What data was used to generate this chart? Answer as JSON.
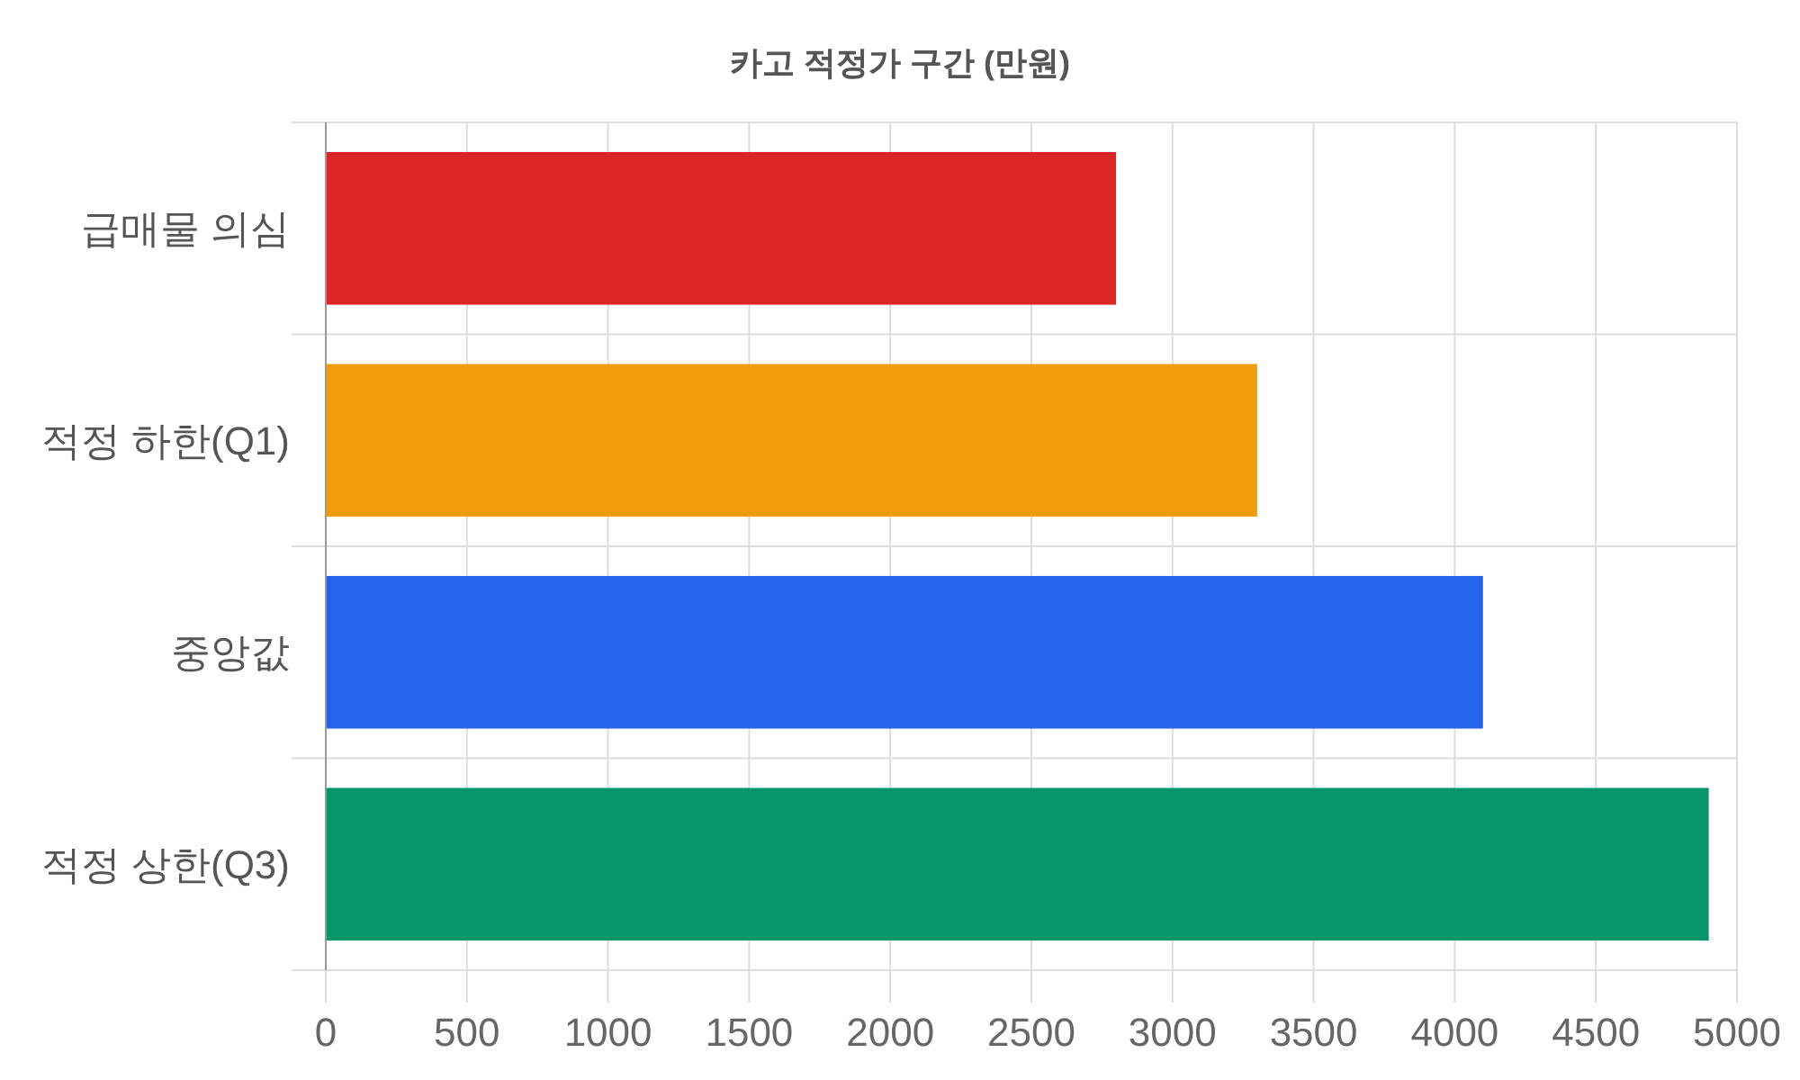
{
  "chart_data": {
    "type": "bar",
    "orientation": "horizontal",
    "title": "카고 적정가 구간 (만원)",
    "categories": [
      "급매물 의심",
      "적정 하한(Q1)",
      "중앙값",
      "적정 상한(Q3)"
    ],
    "values": [
      2800,
      3300,
      4100,
      4900
    ],
    "colors": [
      "#dc2626",
      "#f39c0b",
      "#2563eb",
      "#059669"
    ],
    "xlim": [
      0,
      5000
    ],
    "xticks": [
      0,
      500,
      1000,
      1500,
      2000,
      2500,
      3000,
      3500,
      4000,
      4500,
      5000
    ],
    "grid": true
  }
}
